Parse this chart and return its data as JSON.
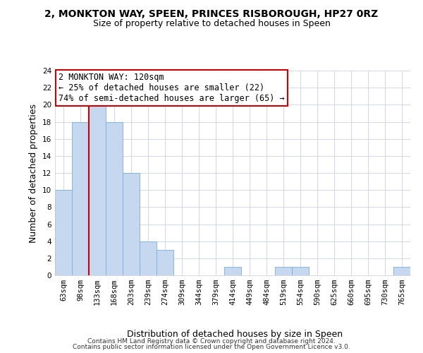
{
  "title": "2, MONKTON WAY, SPEEN, PRINCES RISBOROUGH, HP27 0RZ",
  "subtitle": "Size of property relative to detached houses in Speen",
  "xlabel": "Distribution of detached houses by size in Speen",
  "ylabel": "Number of detached properties",
  "bin_labels": [
    "63sqm",
    "98sqm",
    "133sqm",
    "168sqm",
    "203sqm",
    "239sqm",
    "274sqm",
    "309sqm",
    "344sqm",
    "379sqm",
    "414sqm",
    "449sqm",
    "484sqm",
    "519sqm",
    "554sqm",
    "590sqm",
    "625sqm",
    "660sqm",
    "695sqm",
    "730sqm",
    "765sqm"
  ],
  "bar_values": [
    10,
    18,
    20,
    18,
    12,
    4,
    3,
    0,
    0,
    0,
    1,
    0,
    0,
    1,
    1,
    0,
    0,
    0,
    0,
    0,
    1
  ],
  "bar_color": "#c5d8f0",
  "bar_edge_color": "#7eadd4",
  "red_line_index": 2,
  "annotation_line1": "2 MONKTON WAY: 120sqm",
  "annotation_line2": "← 25% of detached houses are smaller (22)",
  "annotation_line3": "74% of semi-detached houses are larger (65) →",
  "annotation_box_color": "#ffffff",
  "annotation_box_edge_color": "#cc0000",
  "ylim": [
    0,
    24
  ],
  "yticks": [
    0,
    2,
    4,
    6,
    8,
    10,
    12,
    14,
    16,
    18,
    20,
    22,
    24
  ],
  "footer_line1": "Contains HM Land Registry data © Crown copyright and database right 2024.",
  "footer_line2": "Contains public sector information licensed under the Open Government Licence v3.0.",
  "background_color": "#ffffff",
  "grid_color": "#d0d8e8",
  "title_fontsize": 10,
  "subtitle_fontsize": 9,
  "axis_label_fontsize": 9,
  "tick_fontsize": 7.5,
  "annotation_fontsize": 8.5,
  "footer_fontsize": 6.5
}
